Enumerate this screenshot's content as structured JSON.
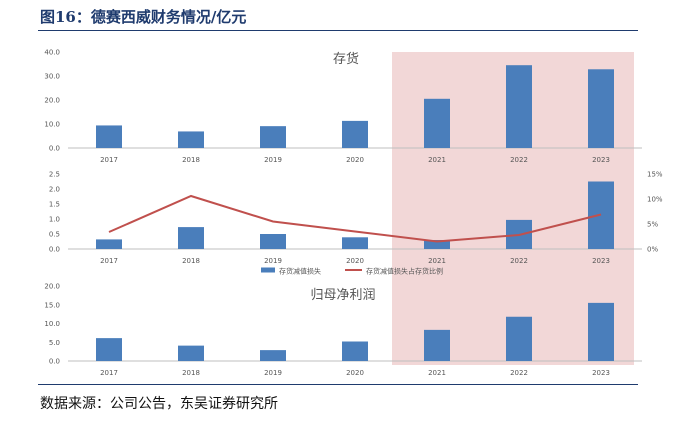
{
  "header": {
    "title": "图16：德赛西威财务情况/亿元"
  },
  "footer": {
    "source": "数据来源：公司公告，东吴证券研究所"
  },
  "colors": {
    "bar": "#4a7ebb",
    "line": "#c0504d",
    "highlight": "#f2d7d7",
    "axis": "#bfbfbf",
    "title": "#1f3b6e"
  },
  "chart_data": [
    {
      "type": "bar",
      "title": "存货",
      "categories": [
        "2017",
        "2018",
        "2019",
        "2020",
        "2021",
        "2022",
        "2023"
      ],
      "values": [
        9.4,
        6.9,
        9.1,
        11.3,
        20.5,
        34.5,
        32.8
      ],
      "ylim": [
        0,
        40
      ],
      "yticks": [
        "0.0",
        "10.0",
        "20.0",
        "30.0",
        "40.0"
      ],
      "highlight_categories": [
        "2021",
        "2022",
        "2023"
      ]
    },
    {
      "type": "bar+line",
      "title": "",
      "categories": [
        "2017",
        "2018",
        "2019",
        "2020",
        "2021",
        "2022",
        "2023"
      ],
      "series": [
        {
          "name": "存货减值损失",
          "type": "bar",
          "axis": "left",
          "values": [
            0.32,
            0.73,
            0.5,
            0.39,
            0.3,
            0.97,
            2.25
          ]
        },
        {
          "name": "存货减值损失占存货比例",
          "type": "line",
          "axis": "right",
          "values": [
            3.4,
            10.6,
            5.5,
            3.5,
            1.5,
            2.8,
            6.9
          ]
        }
      ],
      "ylim": [
        0,
        2.5
      ],
      "yticks": [
        "0.0",
        "0.5",
        "1.0",
        "1.5",
        "2.0",
        "2.5"
      ],
      "y2lim": [
        0,
        15
      ],
      "y2ticks": [
        "0%",
        "5%",
        "10%",
        "15%"
      ],
      "legend_position": "bottom",
      "highlight_categories": [
        "2021",
        "2022",
        "2023"
      ]
    },
    {
      "type": "bar",
      "title": "归母净利润",
      "categories": [
        "2017",
        "2018",
        "2019",
        "2020",
        "2021",
        "2022",
        "2023"
      ],
      "values": [
        6.1,
        4.1,
        2.9,
        5.2,
        8.3,
        11.8,
        15.5
      ],
      "ylim": [
        0,
        20
      ],
      "yticks": [
        "0.0",
        "5.0",
        "10.0",
        "15.0",
        "20.0"
      ],
      "highlight_categories": [
        "2021",
        "2022",
        "2023"
      ]
    }
  ]
}
